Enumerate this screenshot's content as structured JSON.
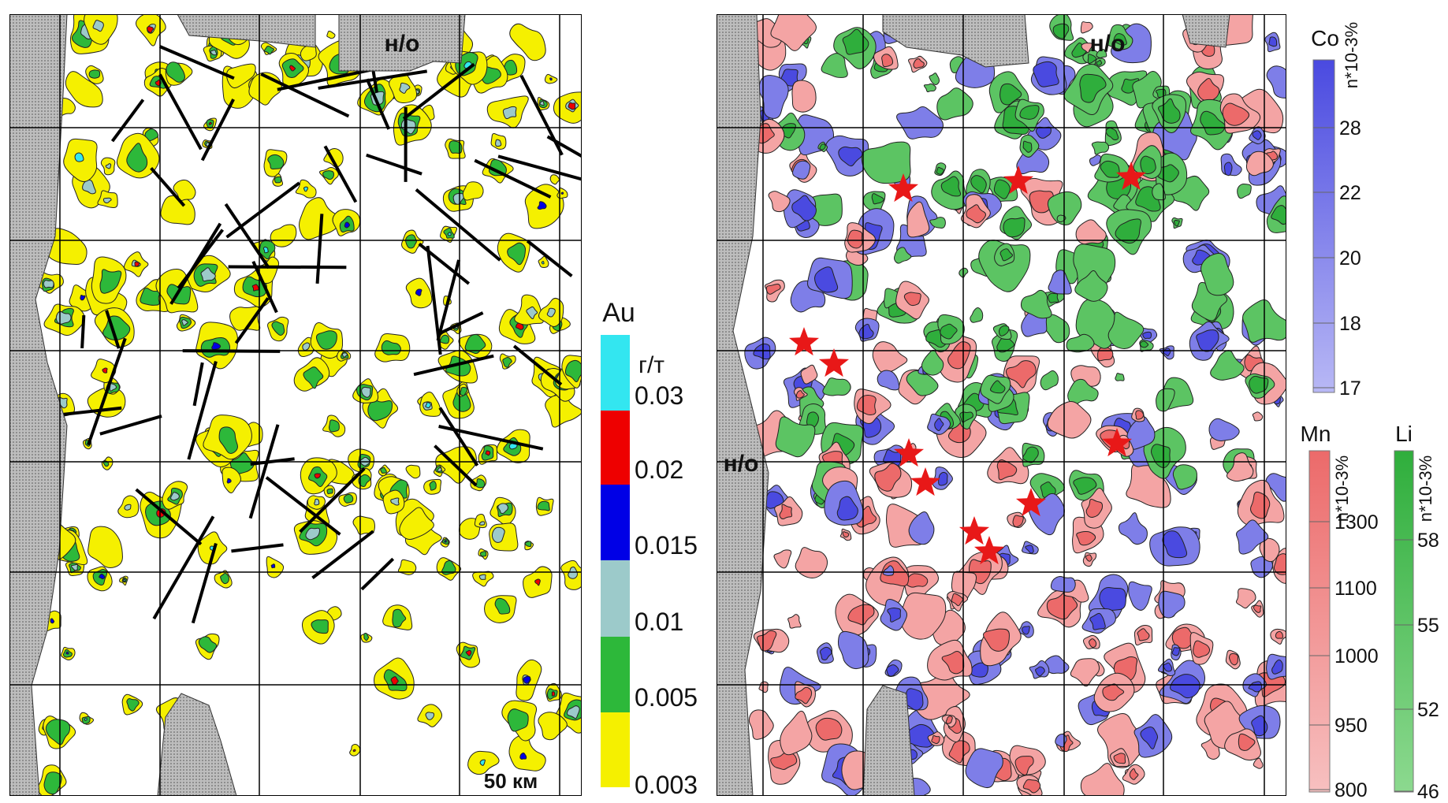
{
  "left_map": {
    "labels": {
      "no_top": "н/о",
      "scale": "50 км"
    },
    "legend": {
      "title": "Au",
      "unit": "г/т",
      "ticks": [
        0.03,
        0.02,
        0.015,
        0.01,
        0.005,
        0.003
      ]
    }
  },
  "right_map": {
    "labels": {
      "no_top": "н/о",
      "no_left": "н/о"
    },
    "legends": [
      {
        "title": "Co",
        "unit": "n*10-3%",
        "ticks": [
          28,
          22,
          20,
          18,
          17
        ]
      },
      {
        "title": "Mn",
        "unit": "n*10-3%",
        "ticks": [
          1300,
          1100,
          1000,
          950,
          800
        ]
      },
      {
        "title": "Li",
        "unit": "n*10-3%",
        "ticks": [
          58,
          55,
          52,
          46
        ]
      }
    ]
  }
}
